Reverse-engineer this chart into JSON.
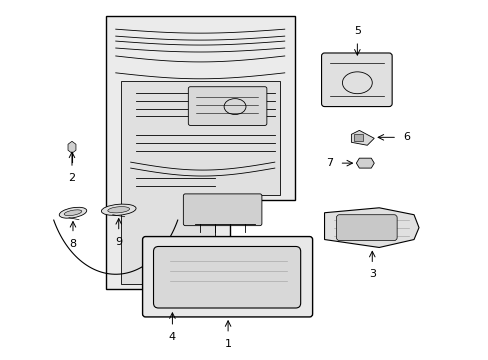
{
  "bg_color": "#ffffff",
  "fg_color": "#000000",
  "panel_fill": "#ebebeb",
  "inner_fill": "#e0e0e0",
  "part_fill": "#e8e8e8",
  "mid_gray": "#888888"
}
